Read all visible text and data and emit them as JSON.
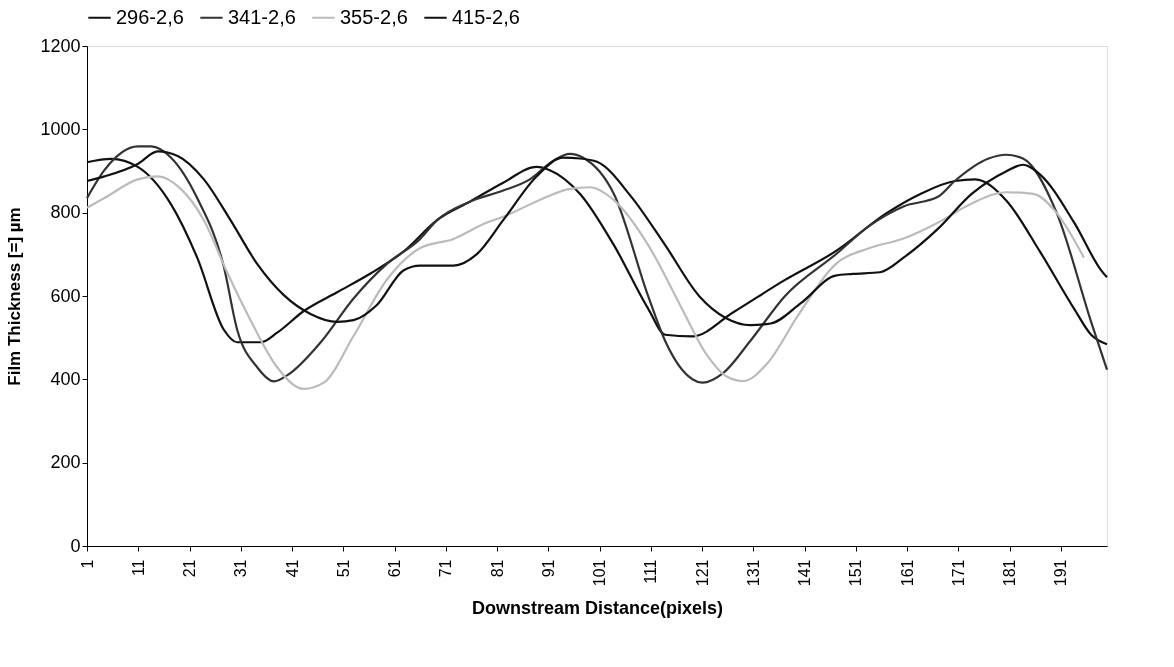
{
  "chart_data": {
    "type": "line",
    "xlabel": "Downstream Distance(pixels)",
    "ylabel": "Film Thickness [=] µm",
    "xlim": [
      1,
      200
    ],
    "xticks": [
      1,
      11,
      21,
      31,
      41,
      51,
      61,
      71,
      81,
      91,
      101,
      111,
      121,
      131,
      141,
      151,
      161,
      171,
      181,
      191
    ],
    "ylim": [
      0,
      1200
    ],
    "yticks": [
      0,
      200,
      400,
      600,
      800,
      1000,
      1200
    ],
    "grid": false,
    "legend": "top",
    "marker": "none",
    "line_style": "solid",
    "series": [
      {
        "name": "296-2,6",
        "color": "#111111",
        "x": [
          1,
          5.7,
          10.9,
          17.4,
          22.5,
          27.7,
          30.3,
          34.9,
          38.1,
          43.3,
          49.8,
          56.3,
          62.8,
          69.3,
          75.8,
          82.2,
          88.7,
          91.3,
          97.2,
          103.8,
          110.5,
          113.8,
          119.1,
          127.1,
          137.1,
          147,
          157,
          163.6,
          170.3,
          174.3,
          180.3,
          186.9,
          193.6,
          196.9,
          200
        ],
        "values": [
          921,
          929,
          910,
          820,
          692,
          519,
          489,
          489,
          512,
          564,
          609,
          654,
          707,
          782,
          827,
          872,
          910,
          902,
          845,
          722,
          569,
          507,
          503,
          561,
          638,
          707,
          799,
          845,
          876,
          880,
          830,
          707,
          569,
          507,
          484
        ]
      },
      {
        "name": "341-2,6",
        "color": "#333333",
        "x": [
          1,
          4.4,
          10.9,
          13.5,
          17.4,
          22.5,
          27.7,
          30.3,
          34.2,
          37.5,
          40.1,
          46.6,
          53,
          59.5,
          66,
          69.3,
          75.8,
          82.2,
          87.4,
          92,
          95.2,
          97.8,
          103.8,
          110.5,
          113.8,
          117.1,
          121.1,
          125.1,
          130.4,
          137.1,
          147,
          153.7,
          160.3,
          167,
          170.3,
          176.9,
          180.3,
          183.6,
          190.2,
          196.9,
          200
        ],
        "values": [
          835,
          902,
          959,
          959,
          932,
          835,
          670,
          519,
          429,
          395,
          410,
          489,
          594,
          677,
          737,
          782,
          827,
          853,
          880,
          925,
          941,
          932,
          845,
          599,
          492,
          423,
          392,
          415,
          492,
          599,
          699,
          769,
          815,
          838,
          876,
          930,
          939,
          930,
          799,
          538,
          423
        ]
      },
      {
        "name": "355-2,6",
        "color": "#bbbbbb",
        "x": [
          1,
          4.4,
          10.9,
          14.8,
          19.3,
          23.8,
          28.4,
          32.9,
          38.1,
          43.3,
          47.2,
          53,
          59.5,
          66,
          72.5,
          78.8,
          82.2,
          88.7,
          95.2,
          99.1,
          103.8,
          110.5,
          117.1,
          121.8,
          125.8,
          129.1,
          133.7,
          139.7,
          147,
          153.7,
          160.3,
          167,
          173.6,
          180.3,
          185.6,
          190.2,
          195.5
        ],
        "values": [
          812,
          835,
          880,
          887,
          857,
          782,
          655,
          542,
          429,
          377,
          392,
          504,
          639,
          715,
          737,
          775,
          790,
          827,
          857,
          861,
          830,
          722,
          569,
          461,
          407,
          396,
          438,
          553,
          676,
          715,
          738,
          776,
          822,
          849,
          845,
          799,
          692
        ]
      },
      {
        "name": "415-2,6",
        "color": "#111111",
        "x": [
          1,
          4.4,
          10.9,
          14.8,
          18.7,
          23.8,
          29,
          34.2,
          39.4,
          44.6,
          49.8,
          53,
          57.6,
          62.8,
          66,
          72.5,
          77,
          82.2,
          88.7,
          93.9,
          97.2,
          100.5,
          107.2,
          113.8,
          120.5,
          125.8,
          130.4,
          134.4,
          140.4,
          147,
          150.4,
          155.7,
          160.3,
          167,
          173.6,
          180.3,
          183.6,
          186.9,
          193.6,
          198.9,
          200
        ],
        "values": [
          876,
          887,
          917,
          947,
          936,
          880,
          782,
          677,
          602,
          557,
          538,
          542,
          579,
          662,
          673,
          673,
          700,
          782,
          887,
          932,
          930,
          922,
          838,
          722,
          599,
          546,
          530,
          534,
          584,
          649,
          653,
          657,
          692,
          761,
          845,
          899,
          915,
          892,
          776,
          661,
          645
        ]
      }
    ]
  }
}
